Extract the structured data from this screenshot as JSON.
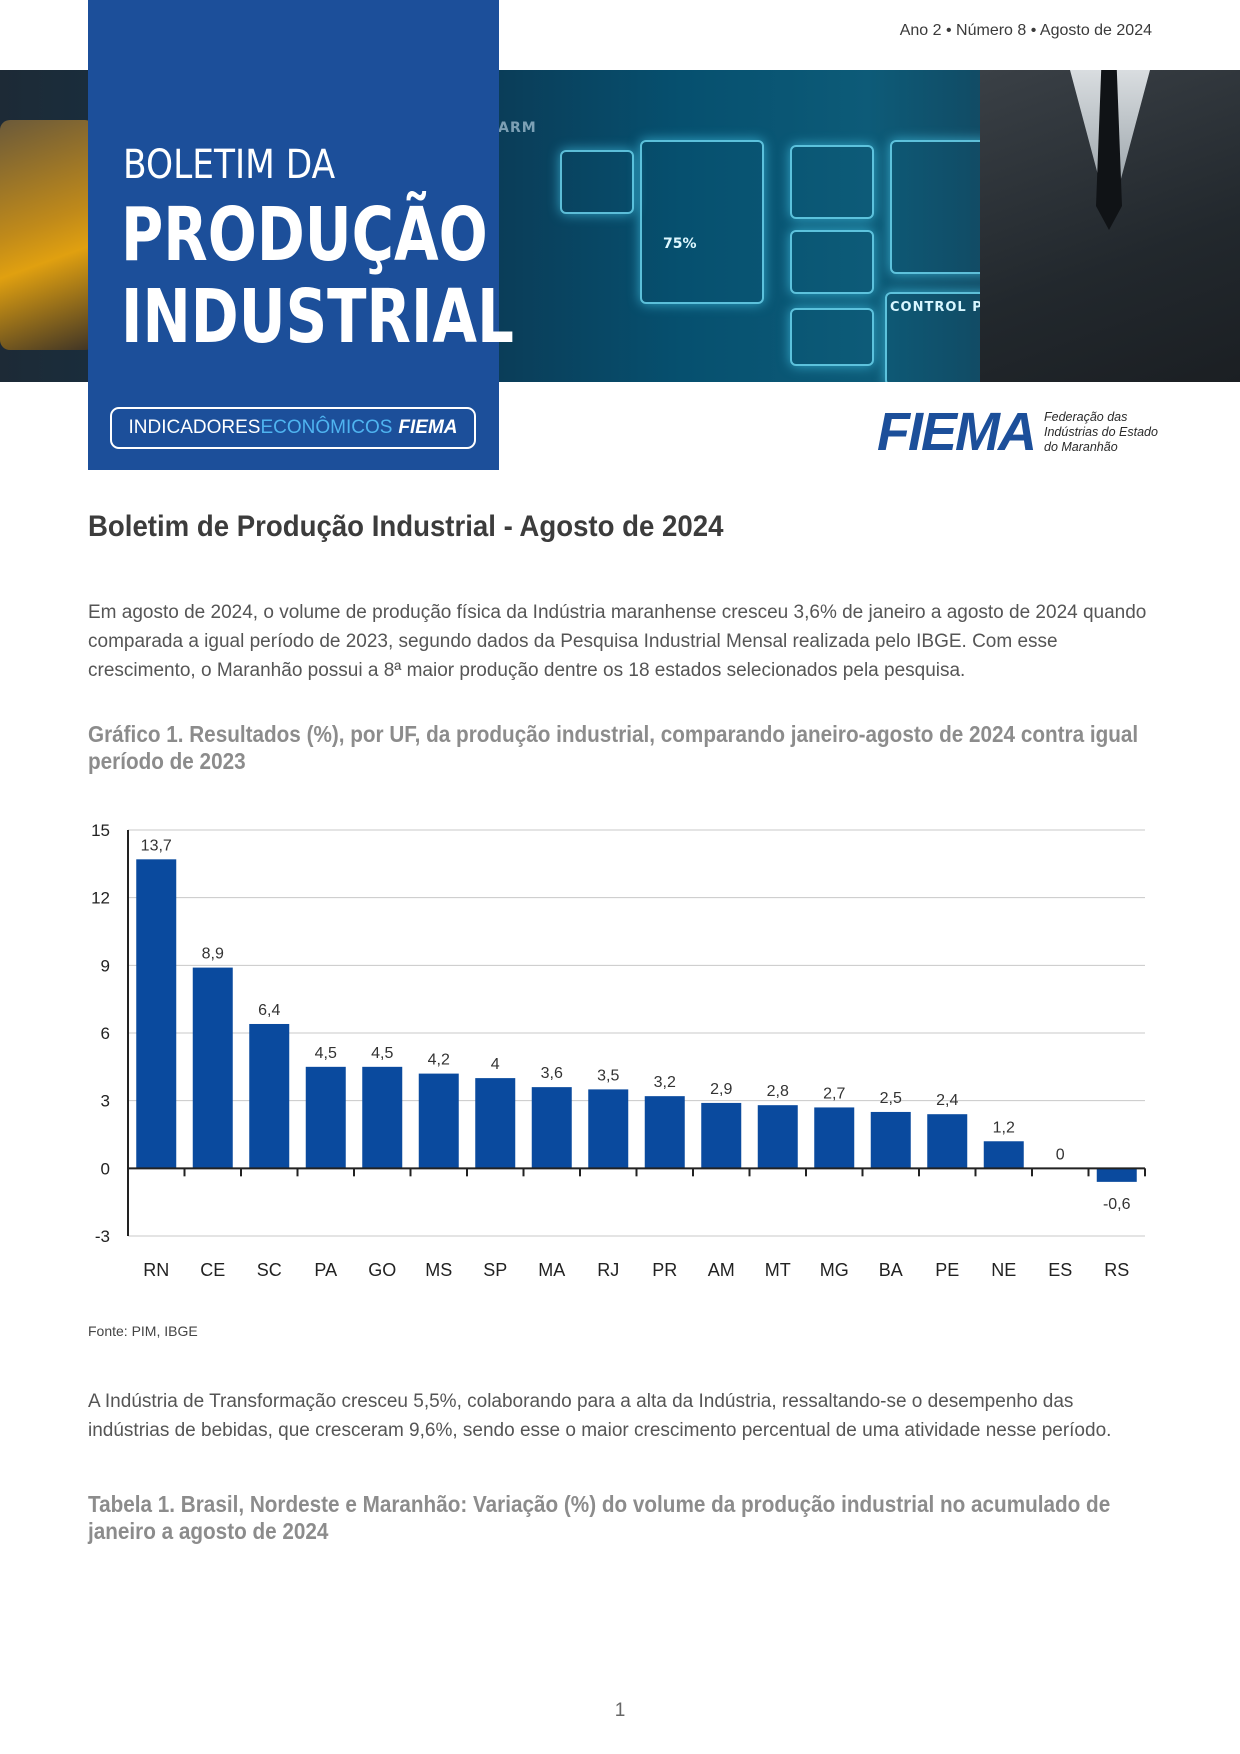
{
  "header": {
    "issue": "Ano 2 • Número 8 • Agosto de 2024"
  },
  "banner": {
    "title_small": "BOLETIM DA",
    "title_line1": "PRODUÇÃO",
    "title_line2": "INDUSTRIAL",
    "series_part1": "INDICADORES",
    "series_part2": "ECONÔMICOS",
    "series_part3": "FIEMA",
    "image_texts": {
      "robotic_arm": "ROBOTIC ARM",
      "control_panel": "CONTROL PANEL",
      "percent": "75%"
    }
  },
  "logo": {
    "name": "FIEMA",
    "line1": "Federação das",
    "line2": "Indústrias do Estado",
    "line3": "do Maranhão"
  },
  "content": {
    "heading": "Boletim de Produção Industrial - Agosto de 2024",
    "paragraph1": "Em agosto de 2024, o volume de produção física da Indústria maranhense cresceu 3,6% de janeiro a agosto de 2024 quando comparada a igual período de 2023, segundo dados da Pesquisa Industrial Mensal realizada pelo IBGE. Com esse crescimento, o Maranhão possui a 8ª maior produção dentre os 18 estados selecionados pela pesquisa.",
    "chart_title": "Gráfico 1. Resultados (%), por UF, da produção industrial, comparando janeiro-agosto de 2024 contra igual período de 2023",
    "source": "Fonte: PIM, IBGE",
    "paragraph2": "A Indústria de Transformação cresceu 5,5%, colaborando para a alta da Indústria, ressaltando-se o desempenho das indústrias de bebidas, que cresceram 9,6%, sendo esse o maior crescimento percentual de uma atividade nesse período.",
    "table_title": "Tabela 1. Brasil, Nordeste e Maranhão: Variação (%) do volume da produção industrial no acumulado de janeiro a agosto de 2024"
  },
  "page_number": "1",
  "colors": {
    "brand_blue": "#1c4f9a",
    "bar_blue": "#0a4a9e",
    "accent_light_blue": "#4fb4f0"
  },
  "chart_data": {
    "type": "bar",
    "categories": [
      "RN",
      "CE",
      "SC",
      "PA",
      "GO",
      "MS",
      "SP",
      "MA",
      "RJ",
      "PR",
      "AM",
      "MT",
      "MG",
      "BA",
      "PE",
      "NE",
      "ES",
      "RS"
    ],
    "values": [
      13.7,
      8.9,
      6.4,
      4.5,
      4.5,
      4.2,
      4,
      3.6,
      3.5,
      3.2,
      2.9,
      2.8,
      2.7,
      2.5,
      2.4,
      1.2,
      0,
      -0.6
    ],
    "value_labels": [
      "13,7",
      "8,9",
      "6,4",
      "4,5",
      "4,5",
      "4,2",
      "4",
      "3,6",
      "3,5",
      "3,2",
      "2,9",
      "2,8",
      "2,7",
      "2,5",
      "2,4",
      "1,2",
      "0",
      "-0,6"
    ],
    "yticks": [
      15,
      12,
      9,
      6,
      3,
      0,
      -3
    ],
    "ylim": [
      -3,
      15
    ],
    "grid": true,
    "legend": "none"
  }
}
